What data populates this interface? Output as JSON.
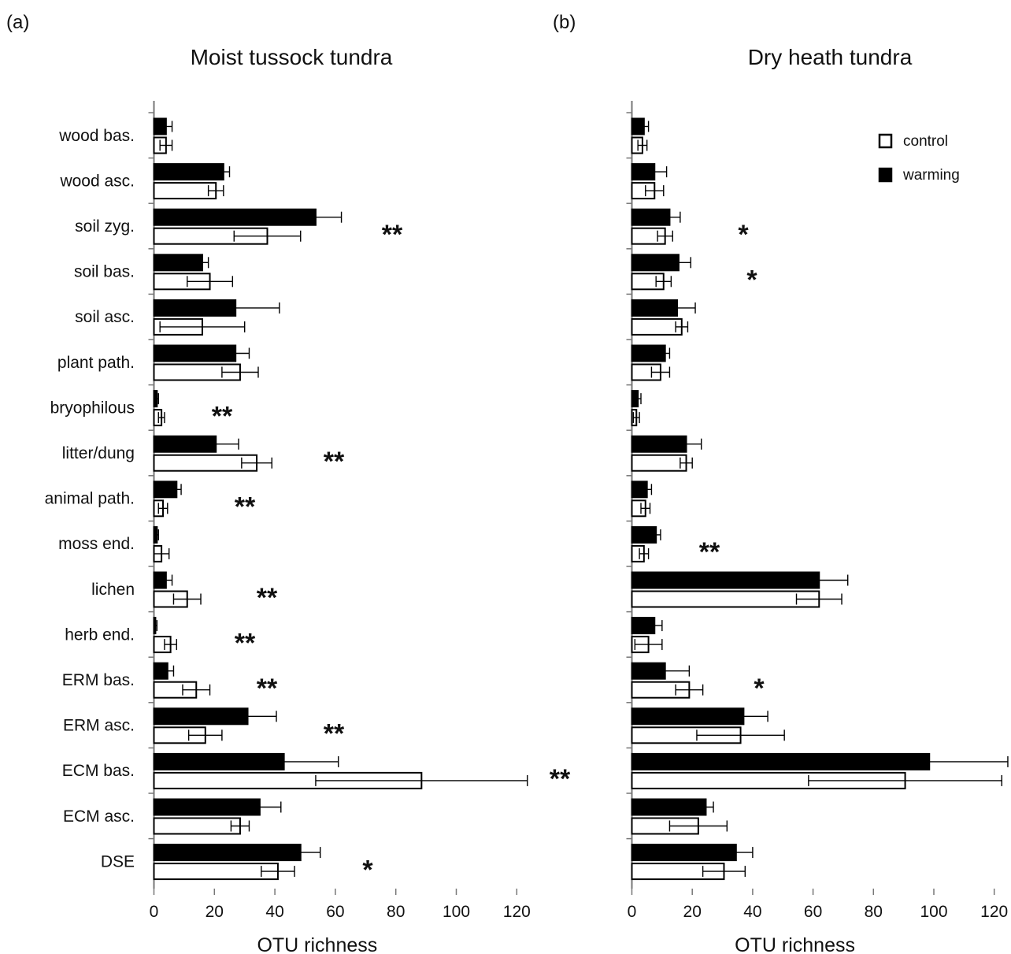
{
  "chart_data": [
    {
      "type": "bar",
      "orientation": "horizontal",
      "panel_label": "(a)",
      "title": "Moist tussock tundra",
      "xlabel": "OTU richness",
      "xlim": [
        0,
        125
      ],
      "xticks": [
        0,
        20,
        40,
        60,
        80,
        100,
        120
      ],
      "grid": false,
      "categories": [
        "wood bas.",
        "wood asc.",
        "soil zyg.",
        "soil bas.",
        "soil asc.",
        "plant path.",
        "bryophilous",
        "litter/dung",
        "animal path.",
        "moss end.",
        "lichen",
        "herb end.",
        "ERM bas.",
        "ERM asc.",
        "ECM bas.",
        "ECM asc.",
        "DSE"
      ],
      "series": [
        {
          "name": "warming",
          "values": [
            4,
            23,
            53.5,
            16,
            27,
            27,
            1,
            20.5,
            7.5,
            1,
            4,
            0.5,
            4.5,
            31,
            43,
            35,
            48.5
          ],
          "errors": [
            2,
            2,
            8.5,
            2,
            14.5,
            4.5,
            0.5,
            7.5,
            1.5,
            0.5,
            2,
            0.5,
            2,
            9.5,
            18,
            7,
            6.5
          ]
        },
        {
          "name": "control",
          "values": [
            4,
            20.5,
            37.5,
            18.5,
            16,
            28.5,
            2.5,
            34,
            3,
            2.5,
            11,
            5.5,
            14,
            17,
            88.5,
            28.5,
            41
          ],
          "errors": [
            2,
            2.5,
            11,
            7.5,
            14,
            6,
            1,
            5,
            1.5,
            2.5,
            4.5,
            2,
            4.5,
            5.5,
            35,
            3,
            5.5
          ]
        }
      ],
      "significance": [
        "",
        "",
        "**",
        "",
        "",
        "",
        "**",
        "**",
        "**",
        "",
        "**",
        "**",
        "**",
        "**",
        "**",
        "",
        "*"
      ]
    },
    {
      "type": "bar",
      "orientation": "horizontal",
      "panel_label": "(b)",
      "title": "Dry heath tundra",
      "xlabel": "OTU richness",
      "xlim": [
        0,
        125
      ],
      "xticks": [
        0,
        20,
        40,
        60,
        80,
        100,
        120
      ],
      "grid": false,
      "legend": "top-right",
      "categories": [
        "wood bas.",
        "wood asc.",
        "soil zyg.",
        "soil bas.",
        "soil asc.",
        "plant path.",
        "bryophilous",
        "litter/dung",
        "animal path.",
        "moss end.",
        "lichen",
        "herb end.",
        "ERM bas.",
        "ERM asc.",
        "ECM bas.",
        "ECM asc.",
        "DSE"
      ],
      "series": [
        {
          "name": "warming",
          "values": [
            4,
            7.5,
            12.5,
            15.5,
            15,
            11,
            2,
            18,
            5,
            8,
            62,
            7.5,
            11,
            37,
            98.5,
            24.5,
            34.5
          ],
          "errors": [
            1.5,
            4,
            3.5,
            4,
            6,
            1.5,
            1,
            5,
            1.5,
            1.5,
            9.5,
            2.5,
            8,
            8,
            26,
            2.5,
            5.5
          ]
        },
        {
          "name": "control",
          "values": [
            3.5,
            7.5,
            11,
            10.5,
            16.5,
            9.5,
            1.5,
            18,
            4.5,
            4,
            62,
            5.5,
            19,
            36,
            90.5,
            22,
            30.5
          ],
          "errors": [
            1.5,
            3,
            2.5,
            2.5,
            2,
            3,
            1,
            2,
            1.5,
            1.5,
            7.5,
            4.5,
            4.5,
            14.5,
            32,
            9.5,
            7
          ]
        }
      ],
      "significance": [
        "",
        "",
        "*",
        "*",
        "",
        "",
        "",
        "",
        "",
        "**",
        "",
        "",
        "*",
        "",
        "",
        "",
        ""
      ]
    }
  ]
}
